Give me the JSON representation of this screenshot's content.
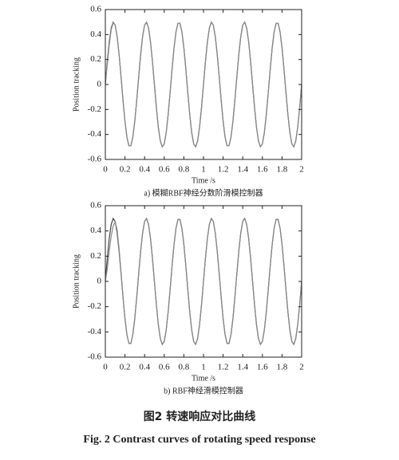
{
  "chart_data": [
    {
      "type": "line",
      "title": "a) 模糊RBF神经分数阶滑模控制器",
      "xlabel": "Time /s",
      "ylabel": "Position tracking",
      "x": [
        0,
        0.02,
        0.04,
        0.06,
        0.08,
        0.1,
        0.12,
        0.14,
        0.16,
        0.18,
        0.2,
        0.22,
        0.24,
        0.26,
        0.28,
        0.3,
        0.32,
        0.34,
        0.36,
        0.38,
        0.4,
        0.42,
        0.44,
        0.46,
        0.48,
        0.5,
        0.52,
        0.54,
        0.56,
        0.58,
        0.6,
        0.62,
        0.64,
        0.66,
        0.68,
        0.7,
        0.72,
        0.74,
        0.76,
        0.78,
        0.8,
        0.82,
        0.84,
        0.86,
        0.88,
        0.9,
        0.92,
        0.94,
        0.96,
        0.98,
        1,
        1.02,
        1.04,
        1.06,
        1.08,
        1.1,
        1.12,
        1.14,
        1.16,
        1.18,
        1.2,
        1.22,
        1.24,
        1.26,
        1.28,
        1.3,
        1.32,
        1.34,
        1.36,
        1.38,
        1.4,
        1.42,
        1.44,
        1.46,
        1.48,
        1.5,
        1.52,
        1.54,
        1.56,
        1.58,
        1.6,
        1.62,
        1.64,
        1.66,
        1.68,
        1.7,
        1.72,
        1.74,
        1.76,
        1.78,
        1.8,
        1.82,
        1.84,
        1.86,
        1.88,
        1.9,
        1.92,
        1.94,
        1.96,
        1.98,
        2
      ],
      "series": [
        {
          "color": "#444444",
          "values": [
            0,
            0.184,
            0.342,
            0.452,
            0.499,
            0.476,
            0.385,
            0.241,
            0.063,
            -0.124,
            -0.294,
            -0.422,
            -0.491,
            -0.491,
            -0.422,
            -0.294,
            -0.124,
            0.063,
            0.241,
            0.385,
            0.476,
            0.499,
            0.452,
            0.342,
            0.184,
            0,
            -0.184,
            -0.342,
            -0.452,
            -0.499,
            -0.476,
            -0.385,
            -0.241,
            -0.063,
            0.124,
            0.294,
            0.422,
            0.491,
            0.491,
            0.422,
            0.294,
            0.124,
            -0.063,
            -0.241,
            -0.385,
            -0.476,
            -0.499,
            -0.452,
            -0.342,
            -0.184,
            0,
            0.184,
            0.342,
            0.452,
            0.499,
            0.476,
            0.385,
            0.241,
            0.063,
            -0.124,
            -0.294,
            -0.422,
            -0.491,
            -0.491,
            -0.422,
            -0.294,
            -0.124,
            0.063,
            0.241,
            0.385,
            0.476,
            0.499,
            0.452,
            0.342,
            0.184,
            0,
            -0.184,
            -0.342,
            -0.452,
            -0.499,
            -0.476,
            -0.385,
            -0.241,
            -0.063,
            0.124,
            0.294,
            0.422,
            0.491,
            0.491,
            0.422,
            0.294,
            0.124,
            -0.063,
            -0.241,
            -0.385,
            -0.476,
            -0.499,
            -0.452,
            -0.342,
            -0.184,
            0
          ]
        },
        {
          "color": "#888888",
          "values": [
            0.02,
            0.16,
            0.32,
            0.44,
            0.495,
            0.476,
            0.385,
            0.241,
            0.063,
            -0.124,
            -0.294,
            -0.422,
            -0.491,
            -0.491,
            -0.422,
            -0.294,
            -0.124,
            0.063,
            0.241,
            0.385,
            0.476,
            0.499,
            0.452,
            0.342,
            0.184,
            0,
            -0.184,
            -0.342,
            -0.452,
            -0.499,
            -0.476,
            -0.385,
            -0.241,
            -0.063,
            0.124,
            0.294,
            0.422,
            0.491,
            0.491,
            0.422,
            0.294,
            0.124,
            -0.063,
            -0.241,
            -0.385,
            -0.476,
            -0.499,
            -0.452,
            -0.342,
            -0.184,
            0,
            0.184,
            0.342,
            0.452,
            0.499,
            0.476,
            0.385,
            0.241,
            0.063,
            -0.124,
            -0.294,
            -0.422,
            -0.491,
            -0.491,
            -0.422,
            -0.294,
            -0.124,
            0.063,
            0.241,
            0.385,
            0.476,
            0.499,
            0.452,
            0.342,
            0.184,
            0,
            -0.184,
            -0.342,
            -0.452,
            -0.499,
            -0.476,
            -0.385,
            -0.241,
            -0.063,
            0.124,
            0.294,
            0.422,
            0.491,
            0.491,
            0.422,
            0.294,
            0.124,
            -0.063,
            -0.241,
            -0.385,
            -0.476,
            -0.499,
            -0.452,
            -0.342,
            -0.184,
            0
          ]
        }
      ],
      "xlim": [
        0,
        2
      ],
      "xticks": [
        0,
        0.2,
        0.4,
        0.6,
        0.8,
        1,
        1.2,
        1.4,
        1.6,
        1.8,
        2
      ],
      "ylim": [
        -0.6,
        0.6
      ],
      "yticks": [
        -0.6,
        -0.4,
        -0.2,
        0,
        0.2,
        0.4,
        0.6
      ]
    },
    {
      "type": "line",
      "title": "b) RBF神经滑模控制器",
      "xlabel": "Time /s",
      "ylabel": "Position tracking",
      "x": [
        0,
        0.02,
        0.04,
        0.06,
        0.08,
        0.1,
        0.12,
        0.14,
        0.16,
        0.18,
        0.2,
        0.22,
        0.24,
        0.26,
        0.28,
        0.3,
        0.32,
        0.34,
        0.36,
        0.38,
        0.4,
        0.42,
        0.44,
        0.46,
        0.48,
        0.5,
        0.52,
        0.54,
        0.56,
        0.58,
        0.6,
        0.62,
        0.64,
        0.66,
        0.68,
        0.7,
        0.72,
        0.74,
        0.76,
        0.78,
        0.8,
        0.82,
        0.84,
        0.86,
        0.88,
        0.9,
        0.92,
        0.94,
        0.96,
        0.98,
        1,
        1.02,
        1.04,
        1.06,
        1.08,
        1.1,
        1.12,
        1.14,
        1.16,
        1.18,
        1.2,
        1.22,
        1.24,
        1.26,
        1.28,
        1.3,
        1.32,
        1.34,
        1.36,
        1.38,
        1.4,
        1.42,
        1.44,
        1.46,
        1.48,
        1.5,
        1.52,
        1.54,
        1.56,
        1.58,
        1.6,
        1.62,
        1.64,
        1.66,
        1.68,
        1.7,
        1.72,
        1.74,
        1.76,
        1.78,
        1.8,
        1.82,
        1.84,
        1.86,
        1.88,
        1.9,
        1.92,
        1.94,
        1.96,
        1.98,
        2
      ],
      "series": [
        {
          "color": "#444444",
          "values": [
            0,
            0.184,
            0.342,
            0.452,
            0.499,
            0.476,
            0.385,
            0.241,
            0.063,
            -0.124,
            -0.294,
            -0.422,
            -0.491,
            -0.491,
            -0.422,
            -0.294,
            -0.124,
            0.063,
            0.241,
            0.385,
            0.476,
            0.499,
            0.452,
            0.342,
            0.184,
            0,
            -0.184,
            -0.342,
            -0.452,
            -0.499,
            -0.476,
            -0.385,
            -0.241,
            -0.063,
            0.124,
            0.294,
            0.422,
            0.491,
            0.491,
            0.422,
            0.294,
            0.124,
            -0.063,
            -0.241,
            -0.385,
            -0.476,
            -0.499,
            -0.452,
            -0.342,
            -0.184,
            0,
            0.184,
            0.342,
            0.452,
            0.499,
            0.476,
            0.385,
            0.241,
            0.063,
            -0.124,
            -0.294,
            -0.422,
            -0.491,
            -0.491,
            -0.422,
            -0.294,
            -0.124,
            0.063,
            0.241,
            0.385,
            0.476,
            0.499,
            0.452,
            0.342,
            0.184,
            0,
            -0.184,
            -0.342,
            -0.452,
            -0.499,
            -0.476,
            -0.385,
            -0.241,
            -0.063,
            0.124,
            0.294,
            0.422,
            0.491,
            0.491,
            0.422,
            0.294,
            0.124,
            -0.063,
            -0.241,
            -0.385,
            -0.476,
            -0.499,
            -0.452,
            -0.342,
            -0.184,
            0
          ]
        },
        {
          "color": "#888888",
          "values": [
            0,
            0.1,
            0.24,
            0.36,
            0.44,
            0.47,
            0.41,
            0.26,
            0.07,
            -0.124,
            -0.294,
            -0.422,
            -0.491,
            -0.491,
            -0.422,
            -0.294,
            -0.124,
            0.063,
            0.241,
            0.385,
            0.476,
            0.499,
            0.452,
            0.342,
            0.184,
            0,
            -0.184,
            -0.342,
            -0.452,
            -0.499,
            -0.476,
            -0.385,
            -0.241,
            -0.063,
            0.124,
            0.294,
            0.422,
            0.491,
            0.491,
            0.422,
            0.294,
            0.124,
            -0.063,
            -0.241,
            -0.385,
            -0.476,
            -0.499,
            -0.452,
            -0.342,
            -0.184,
            0,
            0.184,
            0.342,
            0.452,
            0.499,
            0.476,
            0.385,
            0.241,
            0.063,
            -0.124,
            -0.294,
            -0.422,
            -0.491,
            -0.491,
            -0.422,
            -0.294,
            -0.124,
            0.063,
            0.241,
            0.385,
            0.476,
            0.499,
            0.452,
            0.342,
            0.184,
            0,
            -0.184,
            -0.342,
            -0.452,
            -0.499,
            -0.476,
            -0.385,
            -0.241,
            -0.063,
            0.124,
            0.294,
            0.422,
            0.491,
            0.491,
            0.422,
            0.294,
            0.124,
            -0.063,
            -0.241,
            -0.385,
            -0.476,
            -0.499,
            -0.452,
            -0.342,
            -0.184,
            0
          ]
        }
      ],
      "xlim": [
        0,
        2
      ],
      "xticks": [
        0,
        0.2,
        0.4,
        0.6,
        0.8,
        1,
        1.2,
        1.4,
        1.6,
        1.8,
        2
      ],
      "ylim": [
        -0.6,
        0.6
      ],
      "yticks": [
        -0.6,
        -0.4,
        -0.2,
        0,
        0.2,
        0.4,
        0.6
      ]
    }
  ],
  "figure": {
    "caption_cn": "图2  转速响应对比曲线",
    "caption_en": "Fig. 2  Contrast curves of rotating speed response"
  }
}
